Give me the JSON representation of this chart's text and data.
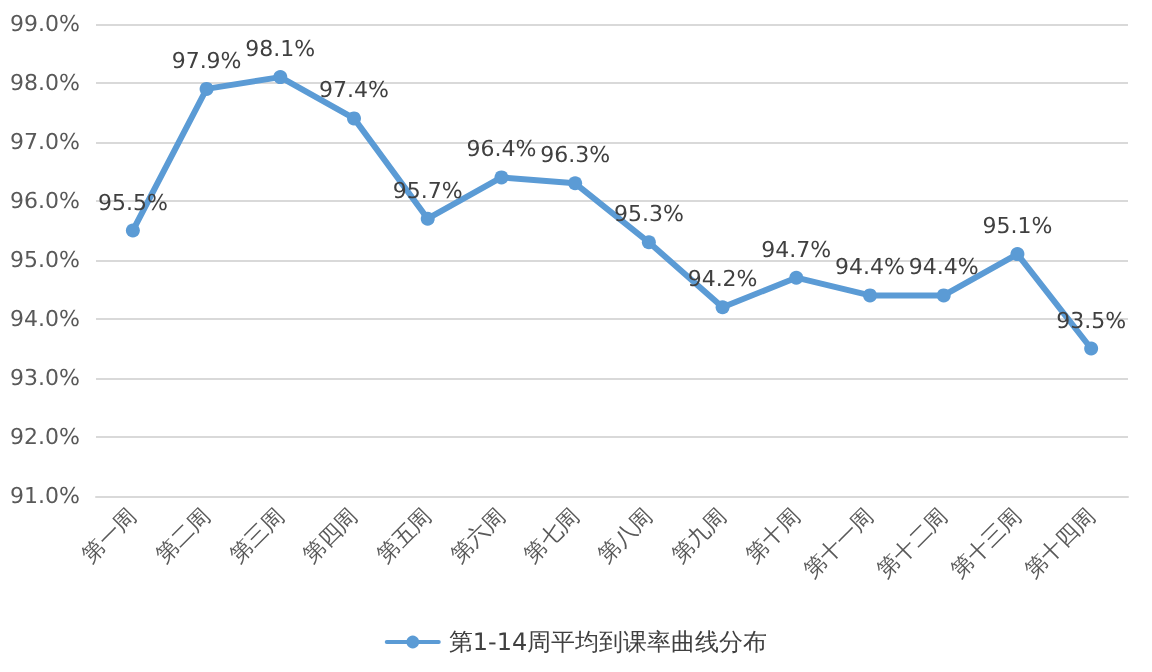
{
  "chart_data": {
    "type": "line",
    "categories": [
      "第一周",
      "第二周",
      "第三周",
      "第四周",
      "第五周",
      "第六周",
      "第七周",
      "第八周",
      "第九周",
      "第十周",
      "第十一周",
      "第十二周",
      "第十三周",
      "第十四周"
    ],
    "series": [
      {
        "name": "第1-14周平均到课率曲线分布",
        "color": "#5b9bd5",
        "values": [
          95.5,
          97.9,
          98.1,
          97.4,
          95.7,
          96.4,
          96.3,
          95.3,
          94.2,
          94.7,
          94.4,
          94.4,
          95.1,
          93.5
        ],
        "value_labels": [
          "95.5%",
          "97.9%",
          "98.1%",
          "97.4%",
          "95.7%",
          "96.4%",
          "96.3%",
          "95.3%",
          "94.2%",
          "94.7%",
          "94.4%",
          "94.4%",
          "95.1%",
          "93.5%"
        ]
      }
    ],
    "ylim": [
      91,
      99
    ],
    "yticks": [
      {
        "value": 91,
        "label": "91.0%"
      },
      {
        "value": 92,
        "label": "92.0%"
      },
      {
        "value": 93,
        "label": "93.0%"
      },
      {
        "value": 94,
        "label": "94.0%"
      },
      {
        "value": 95,
        "label": "95.0%"
      },
      {
        "value": 96,
        "label": "96.0%"
      },
      {
        "value": 97,
        "label": "97.0%"
      },
      {
        "value": 98,
        "label": "98.0%"
      },
      {
        "value": 99,
        "label": "99.0%"
      }
    ],
    "grid": "y",
    "legend": "bottom",
    "marker": "circle",
    "line_style": "solid"
  }
}
